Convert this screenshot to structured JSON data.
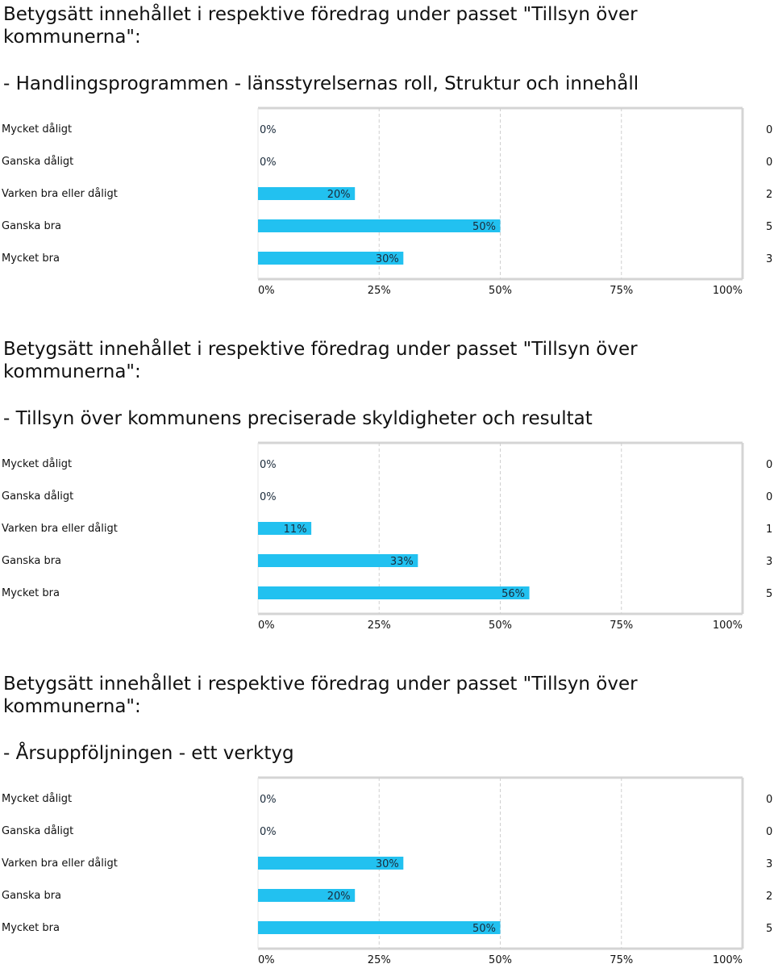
{
  "sections": [
    {
      "heading": "Betygsätt innehållet i respektive föredrag under passet \"Tillsyn över kommunerna\":",
      "subtitle": "- Handlingsprogrammen - länsstyrelsernas roll, Struktur och innehåll"
    },
    {
      "heading": "Betygsätt innehållet i respektive föredrag under passet \"Tillsyn över kommunerna\":",
      "subtitle": "- Tillsyn över kommunens preciserade skyldigheter och resultat"
    },
    {
      "heading": "Betygsätt innehållet i respektive föredrag under passet \"Tillsyn över kommunerna\":",
      "subtitle": "- Årsuppföljningen - ett verktyg"
    }
  ],
  "chart_data": [
    {
      "type": "bar",
      "orientation": "horizontal",
      "categories": [
        "Mycket dåligt",
        "Ganska dåligt",
        "Varken bra eller dåligt",
        "Ganska bra",
        "Mycket bra"
      ],
      "values": [
        0,
        0,
        20,
        50,
        30
      ],
      "value_labels": [
        "0%",
        "0%",
        "20%",
        "50%",
        "30%"
      ],
      "counts": [
        "0",
        "0",
        "2",
        "5",
        "3"
      ],
      "xlim": [
        0,
        100
      ],
      "x_ticks": [
        "0%",
        "25%",
        "50%",
        "75%",
        "100%"
      ],
      "grid": true,
      "bar_color": "#22c1f0"
    },
    {
      "type": "bar",
      "orientation": "horizontal",
      "categories": [
        "Mycket dåligt",
        "Ganska dåligt",
        "Varken bra eller dåligt",
        "Ganska bra",
        "Mycket bra"
      ],
      "values": [
        0,
        0,
        11,
        33,
        56
      ],
      "value_labels": [
        "0%",
        "0%",
        "11%",
        "33%",
        "56%"
      ],
      "counts": [
        "0",
        "0",
        "1",
        "3",
        "5"
      ],
      "xlim": [
        0,
        100
      ],
      "x_ticks": [
        "0%",
        "25%",
        "50%",
        "75%",
        "100%"
      ],
      "grid": true,
      "bar_color": "#22c1f0"
    },
    {
      "type": "bar",
      "orientation": "horizontal",
      "categories": [
        "Mycket dåligt",
        "Ganska dåligt",
        "Varken bra eller dåligt",
        "Ganska bra",
        "Mycket bra"
      ],
      "values": [
        0,
        0,
        30,
        20,
        50
      ],
      "value_labels": [
        "0%",
        "0%",
        "30%",
        "20%",
        "50%"
      ],
      "counts": [
        "0",
        "0",
        "3",
        "2",
        "5"
      ],
      "xlim": [
        0,
        100
      ],
      "x_ticks": [
        "0%",
        "25%",
        "50%",
        "75%",
        "100%"
      ],
      "grid": true,
      "bar_color": "#22c1f0"
    }
  ]
}
